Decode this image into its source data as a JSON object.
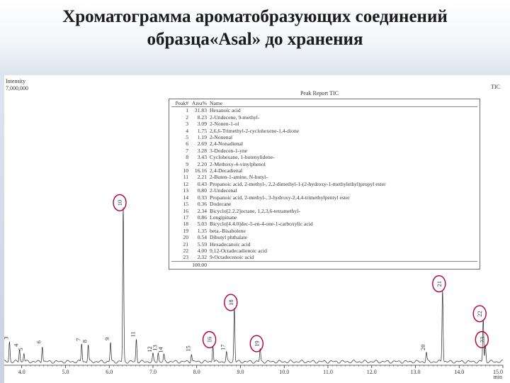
{
  "slide": {
    "title_line1": "Хроматограмма ароматобразующих соединений",
    "title_line2": "образца«Asal» до хранения"
  },
  "colors": {
    "trace": "#2a2a2a",
    "circle": "#b0003a",
    "axis": "#333333"
  },
  "chart_data": {
    "type": "line",
    "title": "Peak Report TIC",
    "trace_label": "TIC",
    "ylabel": "Intensity",
    "ytick_label": "7,000,000",
    "xlabel": "min",
    "xlim": [
      3.6,
      15.0
    ],
    "ylim": [
      0,
      7000000
    ],
    "x_ticks": [
      "4.0",
      "5.0",
      "6.0",
      "7.0",
      "8.0",
      "9.0",
      "10.0",
      "11.0",
      "12.0",
      "13.0",
      "14.0",
      "15.0"
    ],
    "series": [
      {
        "peaks": [
          {
            "label": "3",
            "rt": 3.72,
            "intensity": 500000
          },
          {
            "label": "4",
            "rt": 3.95,
            "intensity": 320000
          },
          {
            "label": "5",
            "rt": 4.05,
            "intensity": 220000
          },
          {
            "label": "6",
            "rt": 4.47,
            "intensity": 400000
          },
          {
            "label": "7",
            "rt": 5.37,
            "intensity": 460000
          },
          {
            "label": "8",
            "rt": 5.52,
            "intensity": 420000
          },
          {
            "label": "9",
            "rt": 6.03,
            "intensity": 480000
          },
          {
            "label": "10",
            "rt": 6.32,
            "intensity": 3850000
          },
          {
            "label": "11",
            "rt": 6.62,
            "intensity": 560000
          },
          {
            "label": "12",
            "rt": 7.0,
            "intensity": 180000
          },
          {
            "label": "13",
            "rt": 7.12,
            "intensity": 220000
          },
          {
            "label": "14",
            "rt": 7.25,
            "intensity": 160000
          },
          {
            "label": "15",
            "rt": 7.88,
            "intensity": 200000
          },
          {
            "label": "16",
            "rt": 8.37,
            "intensity": 420000
          },
          {
            "label": "17",
            "rt": 8.68,
            "intensity": 230000
          },
          {
            "label": "18",
            "rt": 8.86,
            "intensity": 1350000
          },
          {
            "label": "19",
            "rt": 9.45,
            "intensity": 320000
          },
          {
            "label": "20",
            "rt": 13.25,
            "intensity": 230000
          },
          {
            "label": "21",
            "rt": 13.62,
            "intensity": 1820000
          },
          {
            "label": "22",
            "rt": 14.55,
            "intensity": 1070000
          },
          {
            "label": "23",
            "rt": 14.6,
            "intensity": 420000
          }
        ]
      }
    ],
    "circled_peaks": [
      "10",
      "16",
      "18",
      "19",
      "21",
      "22",
      "23"
    ],
    "table": {
      "headers": [
        "Peak#",
        "Area%",
        "Name"
      ],
      "rows": [
        [
          "1",
          "31.83",
          "Hexanoic acid"
        ],
        [
          "2",
          "8.23",
          "2-Undecene, 9-methyl-"
        ],
        [
          "3",
          "3.09",
          "2-Nonen-1-ol"
        ],
        [
          "4",
          "1.75",
          "2,6,6-Trimethyl-2-cyclohexene-1,4-dione"
        ],
        [
          "5",
          "1.19",
          "2-Nonenal"
        ],
        [
          "6",
          "2.69",
          "2,4-Nonadienal"
        ],
        [
          "7",
          "3.28",
          "3-Dodecen-1-yne"
        ],
        [
          "8",
          "3.43",
          "Cyclohexane, 1-butenylidene-"
        ],
        [
          "9",
          "2.20",
          "2-Methoxy-4-vinylphenol"
        ],
        [
          "10",
          "16.16",
          "2,4-Decadienal"
        ],
        [
          "11",
          "2.21",
          "2-Buten-1-amine, N-butyl-"
        ],
        [
          "12",
          "0.43",
          "Propanoic acid, 2-methyl-, 2,2-dimethyl-1-(2-hydroxy-1-methylethyl)propyl ester"
        ],
        [
          "13",
          "0.80",
          "2-Undecenal"
        ],
        [
          "14",
          "0.33",
          "Propanoic acid, 2-methyl-, 3-hydroxy-2,4,4-trimethylpentyl ester"
        ],
        [
          "15",
          "0.36",
          "Dodecane"
        ],
        [
          "16",
          "2.34",
          "Bicyclo[2.2.2]octane, 1,2,3,6-tetramethyl-"
        ],
        [
          "17",
          "0.86",
          "Longipinane"
        ],
        [
          "18",
          "5.03",
          "Bicyclo[4.4.0]dec-5-en-4-one-1-carboxylic acid"
        ],
        [
          "19",
          "1.35",
          "beta.-Bisabolene"
        ],
        [
          "20",
          "0.54",
          "Dibutyl phthalate"
        ],
        [
          "21",
          "5.59",
          "Hexadecanoic acid"
        ],
        [
          "22",
          "4.00",
          "9,12-Octadecadienoic acid"
        ],
        [
          "23",
          "2.32",
          "9-Octadecenoic acid"
        ]
      ],
      "total": "100.00"
    }
  }
}
